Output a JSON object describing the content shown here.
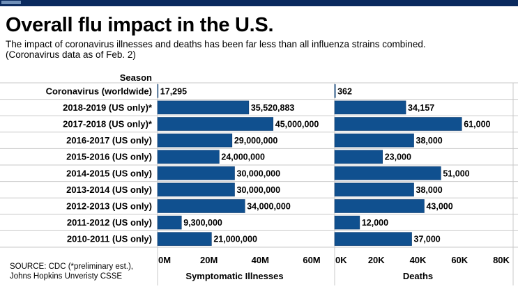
{
  "header": {
    "title": "Overall flu impact in the U.S.",
    "subtitle_line1": "The impact of coronavirus illnesses and deaths has been far less than all influenza strains combined.",
    "subtitle_line2": "(Coronavirus data as of Feb. 2)"
  },
  "source": {
    "line1": "SOURCE: CDC  (*preliminary est.),",
    "line2": "Johns Hopkins Unveristy CSSE"
  },
  "colors": {
    "bar": "#10508f",
    "bar_edge": "#0a3a6e",
    "top_bar": "#0a2a5e",
    "grid": "#c8c8c8"
  },
  "chart_data": {
    "type": "bar",
    "orientation": "horizontal",
    "category_header": "Season",
    "categories": [
      "Coronavirus (worldwide)",
      "2018-2019 (US only)*",
      "2017-2018 (US only)*",
      "2016-2017 (US only)",
      "2015-2016 (US only)",
      "2014-2015 (US only)",
      "2013-2014 (US only)",
      "2012-2013 (US only)",
      "2011-2012 (US only)",
      "2010-2011 (US only)"
    ],
    "panels": [
      {
        "xlabel": "Symptomatic Illnesses",
        "xlim": [
          0,
          60000000
        ],
        "ticks": [
          0,
          20000000,
          40000000,
          60000000
        ],
        "tick_labels": [
          "0M",
          "20M",
          "40M",
          "60M"
        ],
        "values": [
          17295,
          35520883,
          45000000,
          29000000,
          24000000,
          30000000,
          30000000,
          34000000,
          9300000,
          21000000
        ],
        "value_labels": [
          "17,295",
          "35,520,883",
          "45,000,000",
          "29,000,000",
          "24,000,000",
          "30,000,000",
          "30,000,000",
          "34,000,000",
          "9,300,000",
          "21,000,000"
        ]
      },
      {
        "xlabel": "Deaths",
        "xlim": [
          0,
          80000
        ],
        "ticks": [
          0,
          20000,
          40000,
          60000,
          80000
        ],
        "tick_labels": [
          "0K",
          "20K",
          "40K",
          "60K",
          "80K"
        ],
        "values": [
          362,
          34157,
          61000,
          38000,
          23000,
          51000,
          38000,
          43000,
          12000,
          37000
        ],
        "value_labels": [
          "362",
          "34,157",
          "61,000",
          "38,000",
          "23,000",
          "51,000",
          "38,000",
          "43,000",
          "12,000",
          "37,000"
        ]
      }
    ]
  }
}
